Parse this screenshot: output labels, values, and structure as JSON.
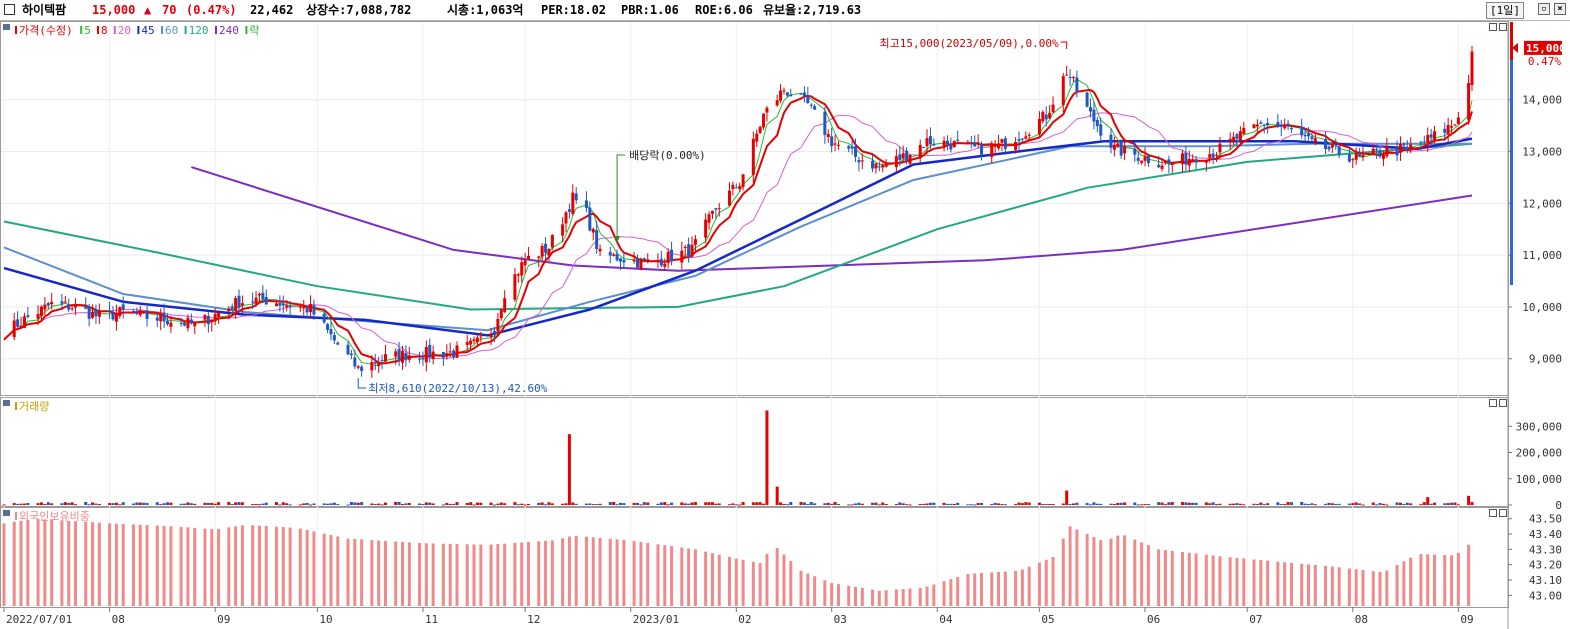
{
  "header": {
    "stock_name": "하이텍팜",
    "price": "15,000",
    "change_arrow": "▲",
    "change": "70",
    "change_pct": "(0.47%)",
    "volume": "22,462",
    "listed_shares": "상장수:7,088,782",
    "market_cap": "시총:1,063억",
    "per": "PER:18.02",
    "pbr": "PBR:1.06",
    "roe": "ROE:6.06",
    "float_ratio": "유보율:2,719.63",
    "period": "[1일]"
  },
  "colors": {
    "ma5": "#2db82d",
    "ma8": "#e60000",
    "ma20": "#d760d0",
    "ma45": "#1528c8",
    "ma60": "#5b8fd0",
    "ma120": "#23a886",
    "ma240": "#7b2ec0",
    "up": "#e60000",
    "down": "#1f58c4",
    "foreign_bar": "#f08a8a"
  },
  "legend": {
    "price_items": [
      {
        "label": "가격(수정)",
        "color": "#e60000"
      },
      {
        "label": "5",
        "color": "#2db82d"
      },
      {
        "label": "8",
        "color": "#e60000"
      },
      {
        "label": "20",
        "color": "#d760d0"
      },
      {
        "label": "45",
        "color": "#1528c8"
      },
      {
        "label": "60",
        "color": "#5b8fd0"
      },
      {
        "label": "120",
        "color": "#23a886"
      },
      {
        "label": "240",
        "color": "#7b2ec0"
      },
      {
        "label": "락",
        "color": "#2db82d"
      }
    ],
    "volume_label": "거래량",
    "foreign_label": "외국인보유비중"
  },
  "chart_data": [
    {
      "type": "candlestick",
      "title": "",
      "ylim": [
        8300,
        15500
      ],
      "yticks": [
        9000,
        10000,
        11000,
        12000,
        13000,
        14000
      ],
      "ytick_labels": [
        "9,000",
        "10,000",
        "11,000",
        "12,000",
        "13,000",
        "14,000"
      ],
      "current_price_label": "15,000",
      "current_pct_label": "0.47%",
      "x_labels": [
        "2022/07/01",
        "08",
        "09",
        "10",
        "11",
        "12",
        "2023/01",
        "02",
        "03",
        "04",
        "05",
        "06",
        "07",
        "08",
        "09"
      ],
      "x_label_dates": [
        "2022-07-01",
        "2022-08-01",
        "2022-09-01",
        "2022-10-01",
        "2022-11-01",
        "2022-12-01",
        "2023-01-01",
        "2023-02-01",
        "2023-03-01",
        "2023-04-01",
        "2023-05-01",
        "2023-06-01",
        "2023-07-01",
        "2023-08-01",
        "2023-09-01"
      ],
      "date_range": [
        "2022-07-01",
        "2023-09-05"
      ],
      "close_path": [
        [
          "2022-07-01",
          9500
        ],
        [
          "2022-07-08",
          9800
        ],
        [
          "2022-07-15",
          10050
        ],
        [
          "2022-07-22",
          10000
        ],
        [
          "2022-07-29",
          9800
        ],
        [
          "2022-08-05",
          9900
        ],
        [
          "2022-08-12",
          9800
        ],
        [
          "2022-08-19",
          9750
        ],
        [
          "2022-08-26",
          9650
        ],
        [
          "2022-09-01",
          9850
        ],
        [
          "2022-09-08",
          10100
        ],
        [
          "2022-09-15",
          10150
        ],
        [
          "2022-09-22",
          10050
        ],
        [
          "2022-09-29",
          9950
        ],
        [
          "2022-10-06",
          9350
        ],
        [
          "2022-10-13",
          8800
        ],
        [
          "2022-10-20",
          9000
        ],
        [
          "2022-10-27",
          9080
        ],
        [
          "2022-11-03",
          9100
        ],
        [
          "2022-11-10",
          9120
        ],
        [
          "2022-11-17",
          9300
        ],
        [
          "2022-11-22",
          9600
        ],
        [
          "2022-11-25",
          10300
        ],
        [
          "2022-12-01",
          10900
        ],
        [
          "2022-12-08",
          11150
        ],
        [
          "2022-12-15",
          12100
        ],
        [
          "2022-12-19",
          11800
        ],
        [
          "2022-12-23",
          11000
        ],
        [
          "2022-12-29",
          10950
        ],
        [
          "2023-01-05",
          10850
        ],
        [
          "2023-01-12",
          10950
        ],
        [
          "2023-01-19",
          11100
        ],
        [
          "2023-01-26",
          11900
        ],
        [
          "2023-02-02",
          12400
        ],
        [
          "2023-02-09",
          13700
        ],
        [
          "2023-02-15",
          14200
        ],
        [
          "2023-02-22",
          13900
        ],
        [
          "2023-03-01",
          13200
        ],
        [
          "2023-03-08",
          12900
        ],
        [
          "2023-03-15",
          12700
        ],
        [
          "2023-03-22",
          12900
        ],
        [
          "2023-03-29",
          13200
        ],
        [
          "2023-04-05",
          13150
        ],
        [
          "2023-04-12",
          13050
        ],
        [
          "2023-04-19",
          13100
        ],
        [
          "2023-04-26",
          13350
        ],
        [
          "2023-05-03",
          13700
        ],
        [
          "2023-05-09",
          14550
        ],
        [
          "2023-05-16",
          13700
        ],
        [
          "2023-05-23",
          13050
        ],
        [
          "2023-05-31",
          12900
        ],
        [
          "2023-06-08",
          12750
        ],
        [
          "2023-06-15",
          12900
        ],
        [
          "2023-06-22",
          13000
        ],
        [
          "2023-06-29",
          13300
        ],
        [
          "2023-07-06",
          13550
        ],
        [
          "2023-07-13",
          13450
        ],
        [
          "2023-07-20",
          13150
        ],
        [
          "2023-07-27",
          13000
        ],
        [
          "2023-08-03",
          12850
        ],
        [
          "2023-08-10",
          13000
        ],
        [
          "2023-08-17",
          13050
        ],
        [
          "2023-08-24",
          13250
        ],
        [
          "2023-08-31",
          13550
        ],
        [
          "2023-09-04",
          14300
        ],
        [
          "2023-09-05",
          15000
        ]
      ],
      "ma240": [
        [
          "2022-08-25",
          12700
        ],
        [
          "2022-11-10",
          11100
        ],
        [
          "2022-12-15",
          10800
        ],
        [
          "2023-01-15",
          10700
        ],
        [
          "2023-04-15",
          10900
        ],
        [
          "2023-05-25",
          11100
        ],
        [
          "2023-09-05",
          12150
        ]
      ],
      "ma120": [
        [
          "2022-07-01",
          11650
        ],
        [
          "2022-08-15",
          11050
        ],
        [
          "2022-10-01",
          10400
        ],
        [
          "2022-11-15",
          9950
        ],
        [
          "2023-01-15",
          10000
        ],
        [
          "2023-02-15",
          10400
        ],
        [
          "2023-04-01",
          11500
        ],
        [
          "2023-05-15",
          12300
        ],
        [
          "2023-07-01",
          12800
        ],
        [
          "2023-09-05",
          13150
        ]
      ],
      "ma60": [
        [
          "2022-07-01",
          11150
        ],
        [
          "2022-08-05",
          10250
        ],
        [
          "2022-09-10",
          9900
        ],
        [
          "2022-10-20",
          9700
        ],
        [
          "2022-11-20",
          9550
        ],
        [
          "2022-12-20",
          10100
        ],
        [
          "2023-01-20",
          10600
        ],
        [
          "2023-02-20",
          11550
        ],
        [
          "2023-03-25",
          12450
        ],
        [
          "2023-05-10",
          13100
        ],
        [
          "2023-06-20",
          13100
        ],
        [
          "2023-07-20",
          13150
        ],
        [
          "2023-09-05",
          13150
        ]
      ],
      "ma45": [
        [
          "2022-07-01",
          10750
        ],
        [
          "2022-08-05",
          10100
        ],
        [
          "2022-09-10",
          9850
        ],
        [
          "2022-10-15",
          9750
        ],
        [
          "2022-11-20",
          9450
        ],
        [
          "2022-12-20",
          9950
        ],
        [
          "2023-01-20",
          10700
        ],
        [
          "2023-02-25",
          11850
        ],
        [
          "2023-03-25",
          12750
        ],
        [
          "2023-05-01",
          13050
        ],
        [
          "2023-05-20",
          13200
        ],
        [
          "2023-07-15",
          13200
        ],
        [
          "2023-08-20",
          13050
        ],
        [
          "2023-09-05",
          13250
        ]
      ],
      "annotations": [
        {
          "text": "최고15,000(2023/05/09),0.00%",
          "date": "2023-05-09",
          "value": 15000
        },
        {
          "text": "최저8,610(2022/10/13),42.60%",
          "date": "2022-10-13",
          "value": 8610
        },
        {
          "text": "배당락(0.00%)",
          "date": "2022-12-28",
          "value": 13000
        }
      ]
    },
    {
      "type": "bar",
      "title": "",
      "series_name": "거래량",
      "ylim": [
        0,
        400000
      ],
      "yticks": [
        0,
        100000,
        200000,
        300000
      ],
      "ytick_labels": [
        "0",
        "100,000",
        "200,000",
        "300,000"
      ],
      "spikes": [
        {
          "date": "2022-12-14",
          "value": 270000
        },
        {
          "date": "2023-02-10",
          "value": 360000
        },
        {
          "date": "2023-02-13",
          "value": 70000
        },
        {
          "date": "2023-05-09",
          "value": 55000
        },
        {
          "date": "2023-08-23",
          "value": 30000
        },
        {
          "date": "2023-09-04",
          "value": 35000
        }
      ],
      "baseline_value": 9000
    },
    {
      "type": "bar",
      "title": "",
      "series_name": "외국인보유비중",
      "ylim": [
        42.93,
        43.57
      ],
      "yticks": [
        43.0,
        43.1,
        43.2,
        43.3,
        43.4,
        43.5
      ],
      "ytick_labels": [
        "43.00",
        "43.10",
        "43.20",
        "43.30",
        "43.40",
        "43.50"
      ],
      "path": [
        [
          "2022-07-01",
          43.47
        ],
        [
          "2022-07-10",
          43.5
        ],
        [
          "2022-08-01",
          43.47
        ],
        [
          "2022-08-20",
          43.45
        ],
        [
          "2022-09-01",
          43.43
        ],
        [
          "2022-09-10",
          43.46
        ],
        [
          "2022-09-25",
          43.44
        ],
        [
          "2022-10-10",
          43.37
        ],
        [
          "2022-11-01",
          43.34
        ],
        [
          "2022-11-20",
          43.33
        ],
        [
          "2022-12-10",
          43.36
        ],
        [
          "2022-12-15",
          43.39
        ],
        [
          "2022-12-31",
          43.36
        ],
        [
          "2023-01-20",
          43.3
        ],
        [
          "2023-02-01",
          43.24
        ],
        [
          "2023-02-08",
          43.21
        ],
        [
          "2023-02-12",
          43.33
        ],
        [
          "2023-02-20",
          43.16
        ],
        [
          "2023-03-01",
          43.08
        ],
        [
          "2023-03-15",
          43.03
        ],
        [
          "2023-03-28",
          43.05
        ],
        [
          "2023-04-10",
          43.14
        ],
        [
          "2023-04-25",
          43.16
        ],
        [
          "2023-05-05",
          43.25
        ],
        [
          "2023-05-10",
          43.45
        ],
        [
          "2023-05-20",
          43.35
        ],
        [
          "2023-05-25",
          43.4
        ],
        [
          "2023-06-05",
          43.3
        ],
        [
          "2023-06-25",
          43.25
        ],
        [
          "2023-07-10",
          43.22
        ],
        [
          "2023-07-25",
          43.19
        ],
        [
          "2023-08-10",
          43.15
        ],
        [
          "2023-08-20",
          43.27
        ],
        [
          "2023-08-31",
          43.26
        ],
        [
          "2023-09-03",
          43.31
        ],
        [
          "2023-09-05",
          43.35
        ]
      ]
    }
  ]
}
